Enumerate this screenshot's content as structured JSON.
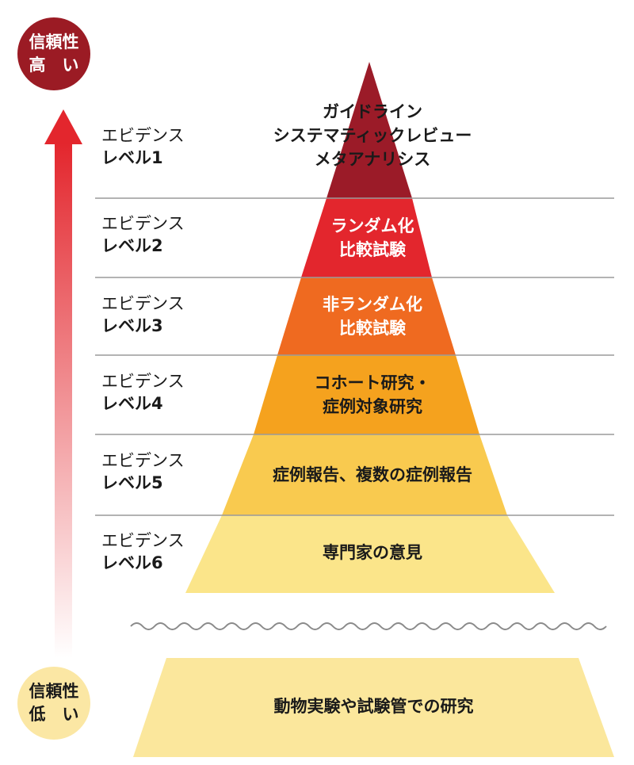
{
  "reliability": {
    "high": {
      "line1": "信頼性",
      "line2": "高　い"
    },
    "low": {
      "line1": "信頼性",
      "line2": "低　い"
    }
  },
  "levels": [
    {
      "label": "エビデンス",
      "level": "レベル1",
      "lines": [
        "ガイドライン",
        "システマティックレビュー",
        "メタアナリシス"
      ],
      "color": "#9b1b28"
    },
    {
      "label": "エビデンス",
      "level": "レベル2",
      "lines": [
        "ランダム化",
        "比較試験"
      ],
      "color": "#e3262d"
    },
    {
      "label": "エビデンス",
      "level": "レベル3",
      "lines": [
        "非ランダム化",
        "比較試験"
      ],
      "color": "#ef6a20"
    },
    {
      "label": "エビデンス",
      "level": "レベル4",
      "lines": [
        "コホート研究・",
        "症例対象研究"
      ],
      "color": "#f5a21e"
    },
    {
      "label": "エビデンス",
      "level": "レベル5",
      "lines": [
        "症例報告、複数の症例報告"
      ],
      "color": "#f9ca4f"
    },
    {
      "label": "エビデンス",
      "level": "レベル6",
      "lines": [
        "専門家の意見"
      ],
      "color": "#fbe58a"
    }
  ],
  "base": {
    "text": "動物実験や試験管での研究",
    "color": "#fbe79c"
  },
  "colors": {
    "arrow_top": "#e3262d",
    "arrow_bottom": "#ffffff",
    "divider": "#9a9a9a",
    "wave": "#8a8a8a"
  }
}
